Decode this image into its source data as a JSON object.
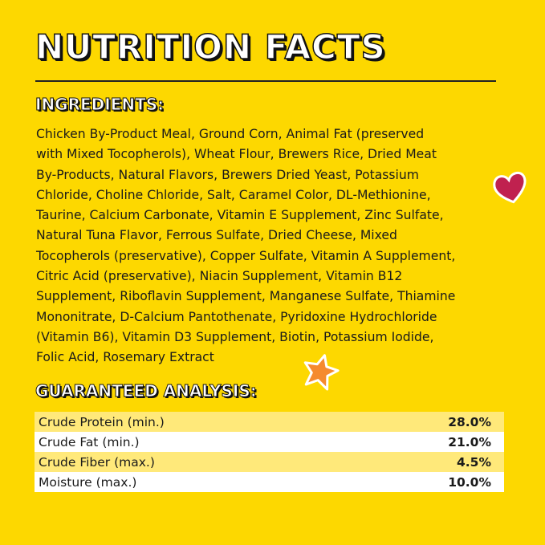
{
  "title": "NUTRITION FACTS",
  "ingredients": {
    "heading": "INGREDIENTS:",
    "lines": [
      "Chicken By-Product Meal, Ground Corn, Animal Fat (preserved",
      "with Mixed Tocopherols), Wheat Flour, Brewers Rice, Dried Meat",
      "By-Products, Natural Flavors, Brewers Dried Yeast, Potassium",
      "Chloride, Choline Chloride, Salt, Caramel Color, DL-Methionine,",
      "Taurine, Calcium Carbonate, Vitamin E Supplement, Zinc Sulfate,",
      "Natural Tuna Flavor, Ferrous Sulfate, Dried Cheese, Mixed",
      "Tocopherols (preservative), Copper Sulfate, Vitamin A Supplement,",
      "Citric Acid (preservative), Niacin Supplement, Vitamin B12",
      "Supplement, Riboflavin Supplement, Manganese Sulfate, Thiamine",
      "Mononitrate, D-Calcium Pantothenate, Pyridoxine Hydrochloride",
      "(Vitamin B6), Vitamin D3 Supplement, Biotin, Potassium Iodide,",
      "Folic Acid, Rosemary Extract"
    ]
  },
  "analysis": {
    "heading": "GUARANTEED ANALYSIS:",
    "rows": [
      {
        "label": "Crude Protein (min.)",
        "value": "28.0%"
      },
      {
        "label": "Crude Fat (min.)",
        "value": "21.0%"
      },
      {
        "label": "Crude Fiber (max.)",
        "value": "4.5%"
      },
      {
        "label": "Moisture (max.)",
        "value": "10.0%"
      }
    ]
  },
  "colors": {
    "background": "#FDD800",
    "heart": "#C0214F",
    "star": "#F58A2E"
  },
  "icons": [
    "heart-icon",
    "star-icon"
  ]
}
